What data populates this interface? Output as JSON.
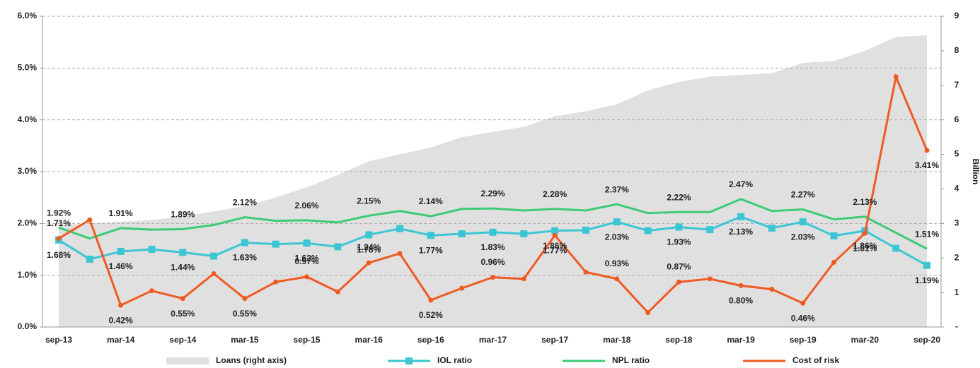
{
  "chart_data": {
    "type": "line",
    "categories": [
      "sep-13",
      null,
      "mar-14",
      null,
      "sep-14",
      null,
      "mar-15",
      null,
      "sep-15",
      null,
      "mar-16",
      null,
      "sep-16",
      null,
      "mar-17",
      null,
      "sep-17",
      null,
      "mar-18",
      null,
      "sep-18",
      null,
      "mar-19",
      null,
      "sep-19",
      null,
      "mar-20",
      null,
      "sep-20"
    ],
    "ylim": [
      0,
      6
    ],
    "yticks": [
      {
        "value": 0,
        "label": "0.0%"
      },
      {
        "value": 1,
        "label": "1.0%"
      },
      {
        "value": 2,
        "label": "2.0%"
      },
      {
        "value": 3,
        "label": "3.0%"
      },
      {
        "value": 4,
        "label": "4.0%"
      },
      {
        "value": 5,
        "label": "5.0%"
      },
      {
        "value": 6,
        "label": "6.0%"
      }
    ],
    "y2lim": [
      0,
      9
    ],
    "y2ticks": [
      {
        "value": 0,
        "label": "-"
      },
      1,
      2,
      3,
      4,
      5,
      6,
      7,
      8,
      9
    ],
    "y2label": "Billion",
    "grid": true,
    "legend": "bottom",
    "series": [
      {
        "name": "Loans (right axis)",
        "type": "area",
        "axis": "y2",
        "color": "#e0e0e0",
        "values": [
          2.95,
          3.0,
          3.05,
          3.1,
          3.2,
          3.35,
          3.5,
          3.75,
          4.05,
          4.4,
          4.8,
          5.0,
          5.2,
          5.5,
          5.65,
          5.8,
          6.1,
          6.25,
          6.45,
          6.85,
          7.1,
          7.25,
          7.3,
          7.35,
          7.65,
          7.7,
          8.0,
          8.4,
          8.45
        ]
      },
      {
        "name": "IOL ratio",
        "type": "line",
        "marker": "square",
        "color": "#3cc6d4",
        "values": [
          1.68,
          1.31,
          1.46,
          1.5,
          1.44,
          1.37,
          1.63,
          1.6,
          1.62,
          1.55,
          1.78,
          1.9,
          1.77,
          1.8,
          1.83,
          1.8,
          1.86,
          1.87,
          2.03,
          1.86,
          1.93,
          1.88,
          2.13,
          1.91,
          2.03,
          1.76,
          1.86,
          1.52,
          1.19
        ],
        "value_labels": [
          "1.68%",
          null,
          "1.46%",
          null,
          "1.44%",
          null,
          "1.63%",
          null,
          "1.62%",
          null,
          "1.78%",
          null,
          "1.77%",
          null,
          "1.83%",
          null,
          "1.86%",
          null,
          "2.03%",
          null,
          "1.93%",
          null,
          "2.13%",
          null,
          "2.03%",
          null,
          "1.86%",
          null,
          "1.19%"
        ]
      },
      {
        "name": "NPL ratio",
        "type": "line",
        "marker": "none",
        "color": "#3ccb76",
        "values": [
          1.92,
          1.71,
          1.91,
          1.88,
          1.89,
          1.97,
          2.12,
          2.05,
          2.06,
          2.02,
          2.15,
          2.24,
          2.14,
          2.28,
          2.29,
          2.25,
          2.28,
          2.25,
          2.37,
          2.2,
          2.22,
          2.22,
          2.47,
          2.24,
          2.27,
          2.08,
          2.13,
          1.82,
          1.51
        ],
        "value_labels": [
          "1.92%",
          null,
          "1.91%",
          null,
          "1.89%",
          null,
          "2.12%",
          null,
          "2.06%",
          null,
          "2.15%",
          null,
          "2.14%",
          null,
          "2.29%",
          null,
          "2.28%",
          null,
          "2.37%",
          null,
          "2.22%",
          null,
          "2.47%",
          null,
          "2.27%",
          null,
          "2.13%",
          null,
          "1.51%"
        ]
      },
      {
        "name": "Cost of risk",
        "type": "line",
        "marker": "circle",
        "color": "#f05a22",
        "values": [
          1.71,
          2.07,
          0.42,
          0.7,
          0.55,
          1.03,
          0.55,
          0.87,
          0.97,
          0.68,
          1.24,
          1.42,
          0.52,
          0.75,
          0.96,
          0.93,
          1.77,
          1.06,
          0.93,
          0.28,
          0.87,
          0.93,
          0.8,
          0.73,
          0.46,
          1.25,
          1.81,
          4.83,
          3.41
        ],
        "value_labels": [
          "1.71%",
          null,
          "0.42%",
          null,
          "0.55%",
          null,
          "0.55%",
          null,
          "0.97%",
          null,
          "1.24%",
          null,
          "0.52%",
          null,
          "0.96%",
          null,
          "1.77%",
          null,
          "0.93%",
          null,
          "0.87%",
          null,
          "0.80%",
          null,
          "0.46%",
          null,
          "1.81%",
          null,
          "3.41%"
        ]
      }
    ]
  }
}
